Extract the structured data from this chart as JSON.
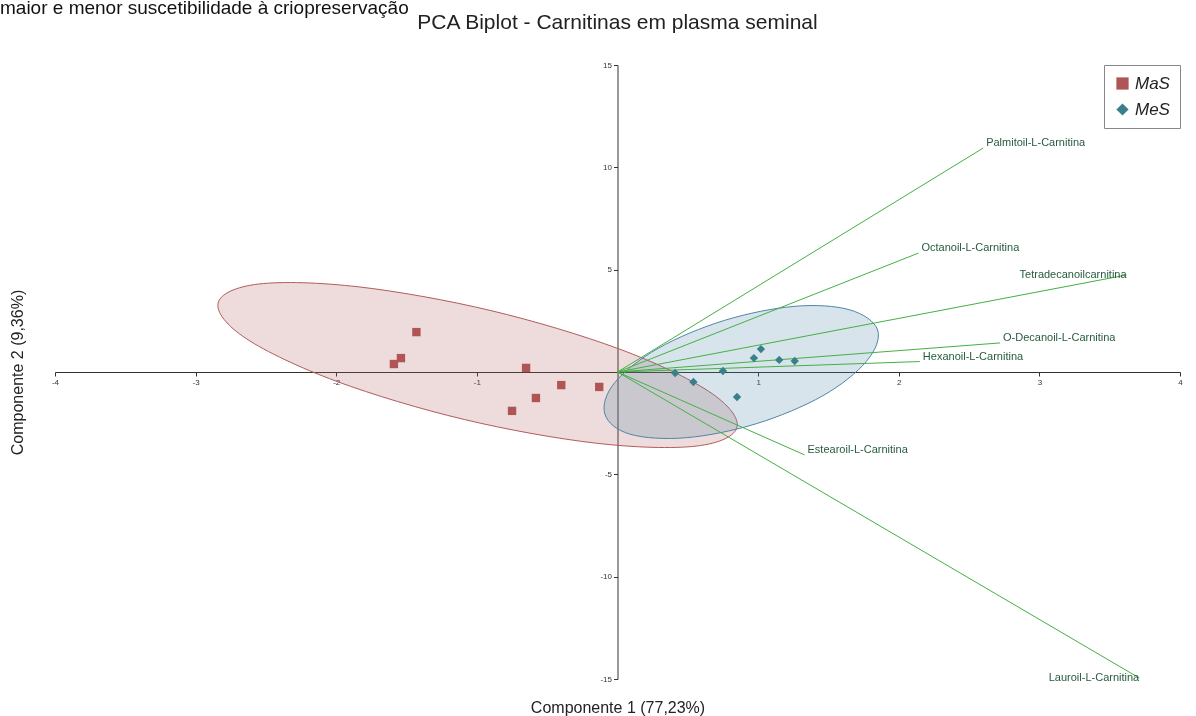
{
  "chart_data": {
    "type": "scatter",
    "title": "PCA Biplot - Carnitinas em plasma seminal",
    "subtitle": "maior e menor suscetibilidade à criopreservação",
    "xlabel": "Componente 1 (77,23%)",
    "ylabel": "Componente 2 (9,36%)",
    "xlim": [
      -4,
      4
    ],
    "xticks": [
      -4,
      -3,
      -2,
      -1,
      1,
      2,
      3,
      4
    ],
    "ylim": [
      -15,
      15
    ],
    "yticks": [
      -15,
      -10,
      -5,
      5,
      10,
      15
    ],
    "grid": false,
    "legend": "top right",
    "series": [
      {
        "type": "area",
        "color": "#b35c5c",
        "x": [
          0.85,
          0.56,
          -0.15,
          -1.09,
          -2.0,
          -2.64,
          -2.84,
          -2.55,
          -1.84,
          -0.9,
          0.01,
          0.65
        ],
        "values": [
          -2.69,
          -3.62,
          -3.48,
          -2.32,
          -0.45,
          1.63,
          3.37,
          4.3,
          4.16,
          3.0,
          1.13,
          -0.95
        ]
      },
      {
        "type": "area",
        "color": "#4f86a6",
        "x": [
          1.85,
          1.77,
          1.46,
          0.99,
          0.49,
          0.09,
          -0.09,
          -0.02,
          0.29,
          0.76,
          1.26,
          1.65
        ],
        "values": [
          2.05,
          0.52,
          -1.16,
          -2.52,
          -3.21,
          -3.04,
          -2.05,
          -0.52,
          1.16,
          2.52,
          3.21,
          3.04
        ]
      },
      {
        "type": "line",
        "name": "Palmitoil-L-Carnitina",
        "color": "#44b044",
        "x": [
          0,
          2.6
        ],
        "values": [
          0,
          10.94
        ]
      },
      {
        "type": "line",
        "name": "Octanoil-L-Carnitina",
        "color": "#44b044",
        "x": [
          0,
          2.14
        ],
        "values": [
          0,
          5.81
        ]
      },
      {
        "type": "line",
        "name": "Tetradecanoilcarnitina",
        "color": "#44b044",
        "x": [
          0,
          3.62
        ],
        "values": [
          0,
          4.74
        ]
      },
      {
        "type": "line",
        "name": "O-Decanoil-L-Carnitina",
        "color": "#44b044",
        "x": [
          0,
          2.72
        ],
        "values": [
          0,
          1.42
        ]
      },
      {
        "type": "line",
        "name": "Hexanoil-L-Carnitina",
        "color": "#44b044",
        "x": [
          0,
          2.15
        ],
        "values": [
          0,
          0.51
        ]
      },
      {
        "type": "line",
        "name": "Estearoil-L-Carnitina",
        "color": "#44b044",
        "x": [
          0,
          1.33
        ],
        "values": [
          0,
          -4.05
        ]
      },
      {
        "type": "line",
        "name": "Lauroil-L-Carnitina",
        "color": "#44b044",
        "x": [
          0,
          3.71
        ],
        "values": [
          0,
          -14.95
        ]
      },
      {
        "type": "scatter",
        "name": "MaS",
        "color": "#b05555",
        "marker": "square",
        "x": [
          -1.43,
          -1.54,
          -1.59,
          -0.65,
          -0.4,
          -0.58,
          -0.75,
          -0.13
        ],
        "values": [
          1.95,
          0.68,
          0.39,
          0.2,
          -0.64,
          -1.27,
          -1.9,
          -0.73
        ]
      },
      {
        "type": "scatter",
        "name": "MeS",
        "color": "#3a7f8c",
        "marker": "diamond",
        "x": [
          0.41,
          0.54,
          0.75,
          0.85,
          0.97,
          1.02,
          1.15,
          1.26
        ],
        "values": [
          -0.05,
          -0.49,
          0.05,
          -1.22,
          0.68,
          1.12,
          0.59,
          0.54
        ]
      }
    ]
  }
}
